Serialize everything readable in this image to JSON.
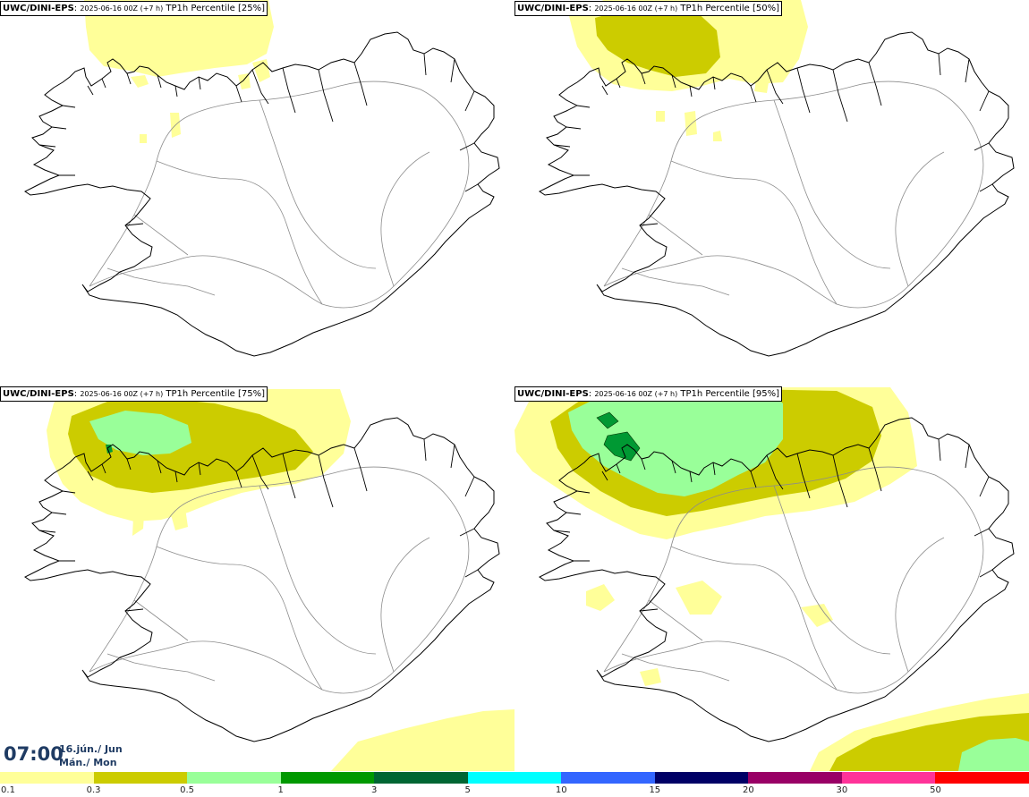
{
  "colors": {
    "light_yellow": "#ffff99",
    "olive": "#cccc00",
    "light_green": "#99ff99",
    "green": "#009933",
    "coastline": "#000000",
    "roads": "#8c8c8c",
    "title_text": "#1f3b63"
  },
  "panels": [
    {
      "model": "UWC/DINI-EPS",
      "run": "2025-06-16 00Z (+7 h)",
      "product": "TP1h Percentile [25%]"
    },
    {
      "model": "UWC/DINI-EPS",
      "run": "2025-06-16 00Z (+7 h)",
      "product": "TP1h Percentile [50%]"
    },
    {
      "model": "UWC/DINI-EPS",
      "run": "2025-06-16 00Z (+7 h)",
      "product": "TP1h Percentile [75%]"
    },
    {
      "model": "UWC/DINI-EPS",
      "run": "2025-06-16 00Z (+7 h)",
      "product": "TP1h Percentile [95%]"
    }
  ],
  "valid_time": {
    "time": "07:00",
    "date_line": "16.jún./ Jun",
    "day_line": "Mán./ Mon"
  },
  "legend": {
    "colors": [
      "#ffff99",
      "#cccc00",
      "#99ff99",
      "#009900",
      "#006633",
      "#00ffff",
      "#3366ff",
      "#000066",
      "#990066",
      "#ff3399",
      "#ff0000"
    ],
    "labels": [
      "0.1",
      "0.3",
      "0.5",
      "1",
      "3",
      "5",
      "10",
      "15",
      "20",
      "30",
      "50"
    ]
  }
}
